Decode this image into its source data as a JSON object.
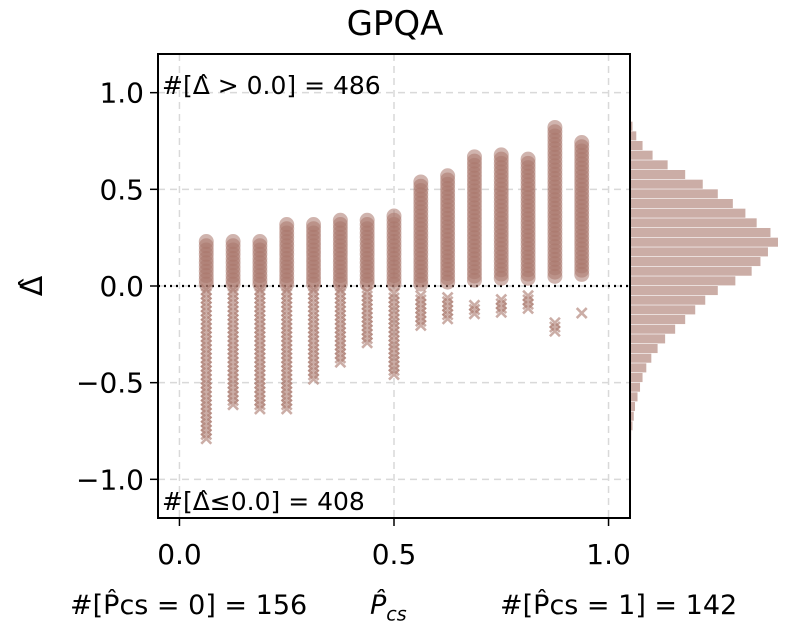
{
  "chart_data": {
    "type": "scatter",
    "title": "GPQA",
    "xlabel": "P̂",
    "xlabel_sub": "cs",
    "ylabel": "Δ̂",
    "xlim": [
      -0.05,
      1.05
    ],
    "ylim": [
      -1.2,
      1.2
    ],
    "xticks": [
      0.0,
      0.5,
      1.0
    ],
    "xtick_labels": [
      "0.0",
      "0.5",
      "1.0"
    ],
    "yticks": [
      -1.0,
      -0.5,
      0.0,
      0.5,
      1.0
    ],
    "ytick_labels": [
      "−1.0",
      "−0.5",
      "0.0",
      "0.5",
      "1.0"
    ],
    "grid": true,
    "reference_line_y": 0.0,
    "color": "#a9766b",
    "annotations": {
      "positive": "#[Δ̂ > 0.0] = 486",
      "nonpositive": "#[Δ̂≤0.0] = 408"
    },
    "bottom_stats": {
      "p_zero": "#[P̂cs = 0] = 156",
      "p_one": "#[P̂cs = 1] = 142"
    },
    "x_columns": [
      0.0625,
      0.125,
      0.1875,
      0.25,
      0.3125,
      0.375,
      0.4375,
      0.5,
      0.5625,
      0.625,
      0.6875,
      0.75,
      0.8125,
      0.875,
      0.9375
    ],
    "positive_ranges": [
      {
        "x": 0.0625,
        "y_min": 0.01,
        "y_max": 0.25
      },
      {
        "x": 0.125,
        "y_min": 0.01,
        "y_max": 0.24
      },
      {
        "x": 0.1875,
        "y_min": 0.01,
        "y_max": 0.23
      },
      {
        "x": 0.25,
        "y_min": 0.01,
        "y_max": 0.32
      },
      {
        "x": 0.3125,
        "y_min": 0.01,
        "y_max": 0.33
      },
      {
        "x": 0.375,
        "y_min": 0.01,
        "y_max": 0.36
      },
      {
        "x": 0.4375,
        "y_min": 0.01,
        "y_max": 0.36
      },
      {
        "x": 0.5,
        "y_min": 0.01,
        "y_max": 0.38
      },
      {
        "x": 0.5625,
        "y_min": 0.01,
        "y_max": 0.55
      },
      {
        "x": 0.625,
        "y_min": 0.02,
        "y_max": 0.57
      },
      {
        "x": 0.6875,
        "y_min": 0.03,
        "y_max": 0.68
      },
      {
        "x": 0.75,
        "y_min": 0.04,
        "y_max": 0.68
      },
      {
        "x": 0.8125,
        "y_min": 0.04,
        "y_max": 0.67
      },
      {
        "x": 0.875,
        "y_min": 0.05,
        "y_max": 0.83
      },
      {
        "x": 0.9375,
        "y_min": 0.06,
        "y_max": 0.76
      }
    ],
    "negative_ranges": [
      {
        "x": 0.0625,
        "y_min": -0.79,
        "y_max": -0.02
      },
      {
        "x": 0.125,
        "y_min": -0.62,
        "y_max": -0.02
      },
      {
        "x": 0.1875,
        "y_min": -0.64,
        "y_max": -0.02
      },
      {
        "x": 0.25,
        "y_min": -0.64,
        "y_max": -0.02
      },
      {
        "x": 0.3125,
        "y_min": -0.5,
        "y_max": -0.02
      },
      {
        "x": 0.375,
        "y_min": -0.4,
        "y_max": -0.02
      },
      {
        "x": 0.4375,
        "y_min": -0.3,
        "y_max": -0.03
      },
      {
        "x": 0.5,
        "y_min": -0.47,
        "y_max": -0.04
      },
      {
        "x": 0.5625,
        "y_min": -0.22,
        "y_max": -0.05
      },
      {
        "x": 0.625,
        "y_min": -0.17,
        "y_max": -0.06
      },
      {
        "x": 0.6875,
        "y_min": -0.16,
        "y_max": -0.1
      },
      {
        "x": 0.75,
        "y_min": -0.14,
        "y_max": -0.07
      },
      {
        "x": 0.8125,
        "y_min": -0.12,
        "y_max": -0.05
      },
      {
        "x": 0.875,
        "y_min": -0.25,
        "y_max": -0.19
      },
      {
        "x": 0.9375,
        "y_min": -0.14,
        "y_max": -0.14
      }
    ],
    "histogram": {
      "bin_edges_min": -0.8,
      "bin_width": 0.05,
      "counts": [
        1,
        2,
        3,
        4,
        6,
        8,
        10,
        13,
        17,
        22,
        28,
        36,
        44,
        52,
        60,
        70,
        84,
        97,
        104,
        110,
        118,
        112,
        101,
        92,
        82,
        70,
        58,
        44,
        30,
        18,
        10,
        5,
        2
      ]
    }
  }
}
